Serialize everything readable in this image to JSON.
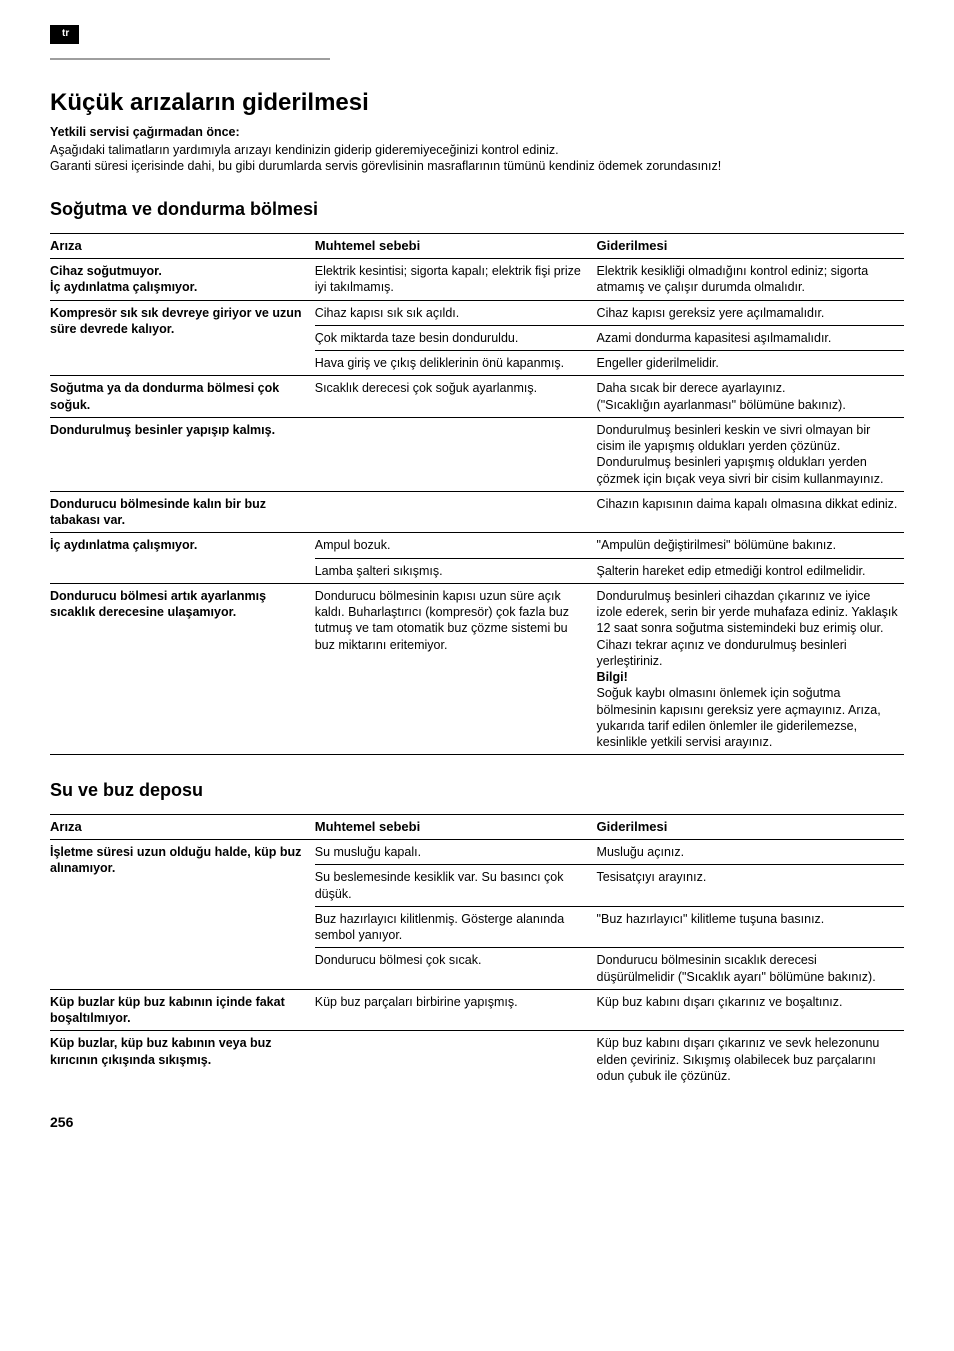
{
  "lang_tag": "tr",
  "title": "Küçük arızaların giderilmesi",
  "subtitle": "Yetkili servisi çağırmadan önce:",
  "intro_line1": "Aşağıdaki talimatların yardımıyla arızayı kendinizin giderip gideremiyeceğinizi kontrol ediniz.",
  "intro_line2": "Garanti süresi içerisinde dahi, bu gibi durumlarda servis görevlisinin masraflarının tümünü kendiniz ödemek zorundasınız!",
  "section1_title": "Soğutma ve dondurma bölmesi",
  "headers": {
    "fault": "Arıza",
    "cause": "Muhtemel sebebi",
    "remedy": "Giderilmesi"
  },
  "t1": {
    "r1": {
      "fault": "Cihaz soğutmuyor.\nİç aydınlatma çalışmıyor.",
      "cause": "Elektrik kesintisi; sigorta kapalı; elektrik fişi prize iyi takılmamış.",
      "remedy": "Elektrik kesikliği olmadığını kontrol ediniz; sigorta atmamış ve çalışır durumda olmalıdır."
    },
    "r2": {
      "fault": "Kompresör sık sık devreye giriyor ve uzun süre devrede kalıyor.",
      "c1": "Cihaz kapısı sık sık açıldı.",
      "r1": "Cihaz kapısı gereksiz yere açılmamalıdır.",
      "c2": "Çok miktarda taze besin donduruldu.",
      "r2": "Azami dondurma kapasitesi aşılmamalıdır.",
      "c3": "Hava giriş ve çıkış deliklerinin önü kapanmış.",
      "r3": "Engeller giderilmelidir."
    },
    "r3": {
      "fault": "Soğutma ya da dondurma bölmesi çok soğuk.",
      "cause": "Sıcaklık derecesi çok soğuk ayarlanmış.",
      "remedy": "Daha sıcak bir derece ayarlayınız.\n(\"Sıcaklığın ayarlanması\" bölümüne bakınız)."
    },
    "r4": {
      "fault": "Dondurulmuş besinler yapışıp kalmış.",
      "remedy": "Dondurulmuş besinleri keskin ve sivri olmayan bir cisim ile yapışmış oldukları yerden çözünüz. Dondurulmuş besinleri yapışmış oldukları yerden çözmek için bıçak veya sivri bir cisim kullanmayınız."
    },
    "r5": {
      "fault": "Dondurucu bölmesinde kalın bir buz tabakası var.",
      "remedy": "Cihazın kapısının daima kapalı olmasına dikkat ediniz."
    },
    "r6": {
      "fault": "İç aydınlatma çalışmıyor.",
      "c1": "Ampul bozuk.",
      "r1": "\"Ampulün değiştirilmesi\" bölümüne bakınız.",
      "c2": "Lamba şalteri sıkışmış.",
      "r2": "Şalterin hareket edip etmediği kontrol edilmelidir."
    },
    "r7": {
      "fault": "Dondurucu bölmesi artık ayarlanmış sıcaklık derecesine ulaşamıyor.",
      "cause": "Dondurucu bölmesinin kapısı uzun süre açık kaldı. Buharlaştırıcı (kompresör) çok fazla buz tutmuş ve tam otomatik buz çözme sistemi bu buz miktarını eritemiyor.",
      "remedy_a": "Dondurulmuş besinleri cihazdan çıkarınız ve iyice izole ederek, serin bir yerde muhafaza ediniz. Yaklaşık 12 saat sonra soğutma sistemindeki buz erimiş olur. Cihazı tekrar açınız ve dondurulmuş besinleri yerleştiriniz.",
      "remedy_label": "Bilgi!",
      "remedy_b": "Soğuk kaybı olmasını önlemek için soğutma bölmesinin kapısını gereksiz yere açmayınız. Arıza, yukarıda tarif edilen önlemler ile giderilemezse, kesinlikle yetkili servisi arayınız."
    }
  },
  "section2_title": "Su ve buz deposu",
  "t2": {
    "r1": {
      "fault": "İşletme süresi uzun olduğu halde, küp buz alınamıyor.",
      "c1": "Su musluğu kapalı.",
      "r1": "Musluğu açınız.",
      "c2": "Su beslemesinde kesiklik var. Su basıncı çok düşük.",
      "r2": "Tesisatçıyı arayınız.",
      "c3": "Buz hazırlayıcı kilitlenmiş. Gösterge alanında sembol yanıyor.",
      "r3": "\"Buz hazırlayıcı\" kilitleme tuşuna basınız.",
      "c4": "Dondurucu bölmesi çok sıcak.",
      "r4": "Dondurucu bölmesinin sıcaklık derecesi düşürülmelidir (\"Sıcaklık ayarı\" bölümüne bakınız)."
    },
    "r2": {
      "fault": "Küp buzlar küp buz kabının içinde fakat boşaltılmıyor.",
      "cause": "Küp buz parçaları birbirine yapışmış.",
      "remedy": "Küp buz kabını dışarı çıkarınız ve boşaltınız."
    },
    "r3": {
      "fault": "Küp buzlar, küp buz kabının veya buz kırıcının çıkışında sıkışmış.",
      "remedy": "Küp buz kabını dışarı çıkarınız ve sevk helezonunu elden çeviriniz. Sıkışmış olabilecek buz parçalarını odun çubuk ile çözünüz."
    }
  },
  "page_number": "256"
}
